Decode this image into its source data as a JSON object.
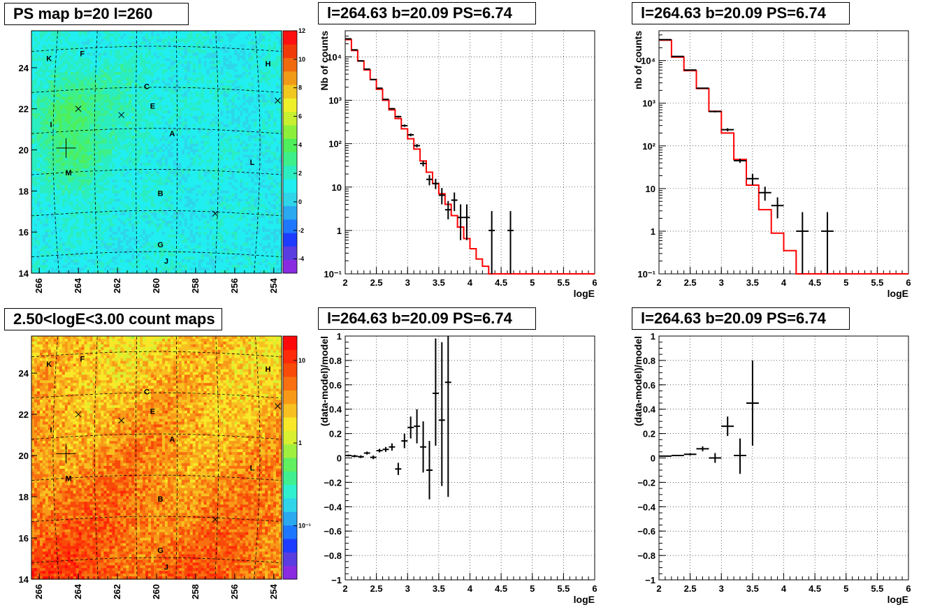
{
  "panels": {
    "map_top": {
      "title": "PS map b=20 l=260"
    },
    "map_bottom": {
      "title": "2.50<logE<3.00 count maps"
    },
    "spec_left": {
      "title": "l=264.63 b=20.09 PS=6.74"
    },
    "spec_right": {
      "title": "l=264.63 b=20.09 PS=6.74"
    },
    "res_left": {
      "title": "l=264.63 b=20.09 PS=6.74"
    },
    "res_right": {
      "title": "l=264.63 b=20.09 PS=6.74"
    }
  },
  "colors": {
    "data": "#000000",
    "model": "#ff0000",
    "grid": "#000000"
  },
  "map_common": {
    "x_ticks": [
      "266",
      "264",
      "262",
      "260",
      "258",
      "256",
      "254"
    ],
    "x_range": [
      266.4,
      253.6
    ],
    "y_ticks": [
      "14",
      "16",
      "18",
      "20",
      "22",
      "24"
    ],
    "y_range": [
      14,
      25.8
    ],
    "source_labels": [
      {
        "name": "K",
        "l": 265.5,
        "b": 24.45
      },
      {
        "name": "F",
        "l": 263.8,
        "b": 24.7
      },
      {
        "name": "H",
        "l": 254.3,
        "b": 24.2
      },
      {
        "name": "C",
        "l": 260.5,
        "b": 23.1
      },
      {
        "name": "E",
        "l": 260.2,
        "b": 22.15
      },
      {
        "name": "I",
        "l": 265.4,
        "b": 21.25
      },
      {
        "name": "A",
        "l": 259.2,
        "b": 20.8
      },
      {
        "name": "L",
        "l": 255.1,
        "b": 19.4
      },
      {
        "name": "M",
        "l": 264.5,
        "b": 18.9
      },
      {
        "name": "B",
        "l": 259.8,
        "b": 17.9
      },
      {
        "name": "G",
        "l": 259.8,
        "b": 15.4
      },
      {
        "name": "J",
        "l": 259.5,
        "b": 14.6
      }
    ],
    "cross_markers": [
      {
        "l": 264.0,
        "b": 22.0
      },
      {
        "l": 261.8,
        "b": 21.7
      },
      {
        "l": 253.8,
        "b": 22.4
      },
      {
        "l": 257.0,
        "b": 16.9
      }
    ],
    "main_source": {
      "l": 264.63,
      "b": 20.09
    }
  },
  "chart_data": [
    {
      "id": "map_top",
      "type": "heatmap",
      "title": "PS map b=20 l=260",
      "colorbar": {
        "min": -5,
        "max": 12,
        "ticks": [
          "12",
          "10",
          "8",
          "6",
          "4",
          "2",
          "0",
          "-2",
          "-4"
        ],
        "scale": "linear"
      }
    },
    {
      "id": "map_bottom",
      "type": "heatmap",
      "title": "2.50<logE<3.00 count maps",
      "colorbar": {
        "ticks": [
          "10",
          "1",
          "10⁻¹"
        ],
        "scale": "log"
      }
    },
    {
      "id": "spec_left",
      "type": "line",
      "title": "l=264.63 b=20.09 PS=6.74",
      "xlabel": "logE",
      "ylabel": "Nb of counts",
      "xlim": [
        2,
        6
      ],
      "ylim": [
        0.1,
        40000
      ],
      "yscale": "log",
      "x_ticks": [
        "2",
        "2.5",
        "3",
        "3.5",
        "4",
        "4.5",
        "5",
        "5.5",
        "6"
      ],
      "y_ticks": [
        {
          "v": 0.1,
          "t": "10⁻¹"
        },
        {
          "v": 1,
          "t": "1"
        },
        {
          "v": 10,
          "t": "10"
        },
        {
          "v": 100,
          "t": "10²"
        },
        {
          "v": 1000,
          "t": "10³"
        },
        {
          "v": 10000,
          "t": "10⁴"
        }
      ],
      "series": [
        {
          "name": "model",
          "kind": "step",
          "bin_width": 0.1,
          "x": [
            2.0,
            2.1,
            2.2,
            2.3,
            2.4,
            2.5,
            2.6,
            2.7,
            2.8,
            2.9,
            3.0,
            3.1,
            3.2,
            3.3,
            3.4,
            3.5,
            3.6,
            3.7,
            3.8,
            3.9,
            4.0,
            4.1,
            4.2,
            4.3,
            4.4,
            4.5,
            4.6,
            4.7,
            4.8,
            4.9,
            5.0,
            5.1,
            5.2,
            5.3,
            5.4,
            5.5,
            5.6,
            5.7,
            5.8,
            5.9
          ],
          "y": [
            25000,
            14000,
            8000,
            5000,
            3000,
            1800,
            1000,
            600,
            380,
            220,
            130,
            75,
            40,
            22,
            12,
            7,
            4,
            2.2,
            1.2,
            0.65,
            0.38,
            0.22,
            0.15,
            0.1,
            0.1,
            0.1,
            0.1,
            0.1,
            0.1,
            0.1,
            0.1,
            0.1,
            0.1,
            0.1,
            0.1,
            0.1,
            0.1,
            0.1,
            0.1,
            0.1
          ]
        },
        {
          "name": "data",
          "kind": "errorbar",
          "x": [
            2.05,
            2.15,
            2.25,
            2.35,
            2.45,
            2.55,
            2.65,
            2.75,
            2.85,
            2.95,
            3.05,
            3.15,
            3.25,
            3.35,
            3.45,
            3.55,
            3.65,
            3.75,
            3.85,
            3.95,
            4.35,
            4.65
          ],
          "y": [
            26000,
            14500,
            8100,
            5200,
            3000,
            1900,
            1050,
            640,
            420,
            260,
            160,
            90,
            35,
            15,
            12,
            6.5,
            3,
            5,
            2,
            2,
            1,
            1
          ],
          "lo": [
            25700,
            14300,
            7950,
            5050,
            2900,
            1850,
            1020,
            615,
            400,
            245,
            148,
            82,
            30,
            11,
            9,
            4,
            1.8,
            2.8,
            0.6,
            0.6,
            0.1,
            0.1
          ],
          "hi": [
            26300,
            14700,
            8250,
            5350,
            3100,
            1950,
            1080,
            665,
            440,
            275,
            172,
            98,
            40,
            19,
            15.5,
            9.5,
            4.8,
            7.5,
            4,
            4,
            2.8,
            2.8
          ],
          "xerr": 0.05
        }
      ]
    },
    {
      "id": "spec_right",
      "type": "line",
      "title": "l=264.63 b=20.09 PS=6.74",
      "xlabel": "logE",
      "ylabel": "nb of counts",
      "xlim": [
        2,
        6
      ],
      "ylim": [
        0.1,
        50000
      ],
      "yscale": "log",
      "x_ticks": [
        "2",
        "2.5",
        "3",
        "3.5",
        "4",
        "4.5",
        "5",
        "5.5",
        "6"
      ],
      "y_ticks": [
        {
          "v": 0.1,
          "t": "10⁻¹"
        },
        {
          "v": 1,
          "t": "1"
        },
        {
          "v": 10,
          "t": "10"
        },
        {
          "v": 100,
          "t": "10²"
        },
        {
          "v": 1000,
          "t": "10³"
        },
        {
          "v": 10000,
          "t": "10⁴"
        }
      ],
      "series": [
        {
          "name": "model",
          "kind": "step",
          "bin_width": 0.2,
          "x": [
            2.0,
            2.2,
            2.4,
            2.6,
            2.8,
            3.0,
            3.2,
            3.4,
            3.6,
            3.8,
            4.0,
            4.2,
            4.4,
            4.6,
            4.8,
            5.0,
            5.2,
            5.4,
            5.6,
            5.8
          ],
          "y": [
            30000,
            12000,
            5800,
            2200,
            650,
            200,
            48,
            12,
            3.2,
            0.9,
            0.35,
            0.1,
            0.1,
            0.1,
            0.1,
            0.1,
            0.1,
            0.1,
            0.1,
            0.1
          ]
        },
        {
          "name": "data",
          "kind": "errorbar",
          "x": [
            2.1,
            2.3,
            2.5,
            2.7,
            2.9,
            3.1,
            3.3,
            3.5,
            3.7,
            3.9,
            4.3,
            4.7
          ],
          "y": [
            31000,
            12500,
            6000,
            2250,
            640,
            240,
            45,
            17,
            8,
            4,
            1,
            1
          ],
          "lo": [
            30800,
            12300,
            5900,
            2200,
            610,
            220,
            40,
            12,
            5.2,
            2,
            0.1,
            0.1
          ],
          "hi": [
            31200,
            12700,
            6100,
            2300,
            670,
            260,
            50,
            22,
            11,
            6.2,
            2.8,
            2.8
          ],
          "xerr": 0.1
        }
      ]
    },
    {
      "id": "res_left",
      "type": "scatter",
      "title": "l=264.63 b=20.09 PS=6.74",
      "xlabel": "logE",
      "ylabel": "(data-model)/model",
      "xlim": [
        2,
        6
      ],
      "ylim": [
        -1,
        1
      ],
      "x_ticks": [
        "2",
        "2.5",
        "3",
        "3.5",
        "4",
        "4.5",
        "5",
        "5.5",
        "6"
      ],
      "y_ticks": [
        {
          "v": -1,
          "t": "−1"
        },
        {
          "v": -0.8,
          "t": "−0.8"
        },
        {
          "v": -0.6,
          "t": "−0.6"
        },
        {
          "v": -0.4,
          "t": "−0.4"
        },
        {
          "v": -0.2,
          "t": "−0.2"
        },
        {
          "v": 0,
          "t": "0"
        },
        {
          "v": 0.2,
          "t": "0.2"
        },
        {
          "v": 0.4,
          "t": "0.4"
        },
        {
          "v": 0.6,
          "t": "0.6"
        },
        {
          "v": 0.8,
          "t": "0.8"
        },
        {
          "v": 1,
          "t": "1"
        }
      ],
      "series": [
        {
          "name": "residuals",
          "kind": "errorbar",
          "xerr": 0.05,
          "x": [
            2.05,
            2.15,
            2.25,
            2.35,
            2.45,
            2.55,
            2.65,
            2.75,
            2.85,
            2.95,
            3.05,
            3.15,
            3.25,
            3.35,
            3.45,
            3.55,
            3.65
          ],
          "y": [
            0.02,
            0.015,
            0.01,
            0.04,
            0.005,
            0.06,
            0.07,
            0.09,
            -0.09,
            0.14,
            0.25,
            0.26,
            0.09,
            -0.1,
            0.53,
            0.31,
            0.62
          ],
          "lo": [
            0.012,
            0.005,
            -0.002,
            0.028,
            -0.01,
            0.045,
            0.05,
            0.06,
            -0.14,
            0.08,
            0.16,
            0.12,
            -0.12,
            -0.34,
            0.1,
            -0.23,
            -0.32
          ],
          "hi": [
            0.028,
            0.025,
            0.022,
            0.052,
            0.02,
            0.075,
            0.09,
            0.12,
            -0.04,
            0.2,
            0.34,
            0.4,
            0.3,
            0.14,
            0.98,
            0.95,
            1.0
          ]
        }
      ]
    },
    {
      "id": "res_right",
      "type": "scatter",
      "title": "l=264.63 b=20.09 PS=6.74",
      "xlabel": "logE",
      "ylabel": "(data-model)/model",
      "xlim": [
        2,
        6
      ],
      "ylim": [
        -1,
        1
      ],
      "x_ticks": [
        "2",
        "2.5",
        "3",
        "3.5",
        "4",
        "4.5",
        "5",
        "5.5",
        "6"
      ],
      "y_ticks": [
        {
          "v": -1,
          "t": "−1"
        },
        {
          "v": -0.8,
          "t": "−0.8"
        },
        {
          "v": -0.6,
          "t": "−0.6"
        },
        {
          "v": -0.4,
          "t": "−0.4"
        },
        {
          "v": -0.2,
          "t": "−0.2"
        },
        {
          "v": 0,
          "t": "0"
        },
        {
          "v": 0.2,
          "t": "0.2"
        },
        {
          "v": 0.4,
          "t": "0.4"
        },
        {
          "v": 0.6,
          "t": "0.6"
        },
        {
          "v": 0.8,
          "t": "0.8"
        },
        {
          "v": 1,
          "t": "1"
        }
      ],
      "series": [
        {
          "name": "residuals",
          "kind": "errorbar",
          "xerr": 0.1,
          "x": [
            2.1,
            2.3,
            2.5,
            2.7,
            2.9,
            3.1,
            3.3,
            3.5
          ],
          "y": [
            0.015,
            0.02,
            0.03,
            0.075,
            0.0,
            0.26,
            0.02,
            0.45
          ],
          "lo": [
            0.01,
            0.015,
            0.02,
            0.055,
            -0.04,
            0.18,
            -0.13,
            0.1
          ],
          "hi": [
            0.02,
            0.025,
            0.04,
            0.095,
            0.04,
            0.34,
            0.16,
            0.8
          ]
        }
      ]
    }
  ]
}
